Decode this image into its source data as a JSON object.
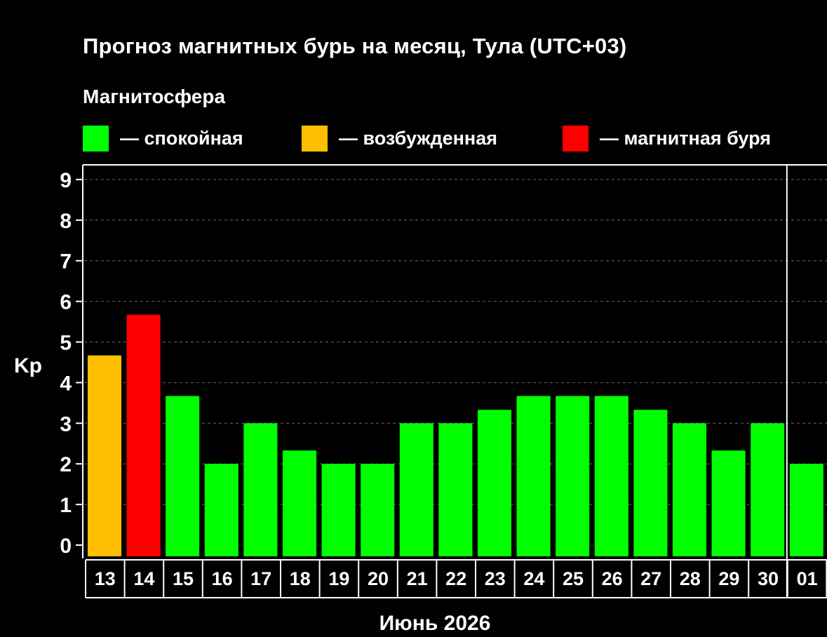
{
  "title": "Прогноз магнитных бурь на месяц, Тула (UTC+03)",
  "subtitle": "Магнитосфера",
  "legend": [
    {
      "label": "— спокойная",
      "color": "#00ff00"
    },
    {
      "label": "— возбужденная",
      "color": "#ffbf00"
    },
    {
      "label": "— магнитная буря",
      "color": "#ff0000"
    }
  ],
  "chart_data": {
    "type": "bar",
    "xlabel": "Июнь 2026",
    "ylabel": "Kp",
    "ylim": [
      0,
      9
    ],
    "yticks": [
      0,
      1,
      2,
      3,
      4,
      5,
      6,
      7,
      8,
      9
    ],
    "grid": true,
    "legend_position": "top",
    "categories": [
      "13",
      "14",
      "15",
      "16",
      "17",
      "18",
      "19",
      "20",
      "21",
      "22",
      "23",
      "24",
      "25",
      "26",
      "27",
      "28",
      "29",
      "30",
      "01"
    ],
    "values": [
      4.67,
      5.67,
      3.67,
      2,
      3,
      2.33,
      2,
      2,
      3,
      3,
      3.33,
      3.67,
      3.67,
      3.67,
      3.33,
      3,
      2.33,
      3,
      2
    ],
    "colors": [
      "#ffbf00",
      "#ff0000",
      "#00ff00",
      "#00ff00",
      "#00ff00",
      "#00ff00",
      "#00ff00",
      "#00ff00",
      "#00ff00",
      "#00ff00",
      "#00ff00",
      "#00ff00",
      "#00ff00",
      "#00ff00",
      "#00ff00",
      "#00ff00",
      "#00ff00",
      "#00ff00",
      "#00ff00"
    ]
  }
}
